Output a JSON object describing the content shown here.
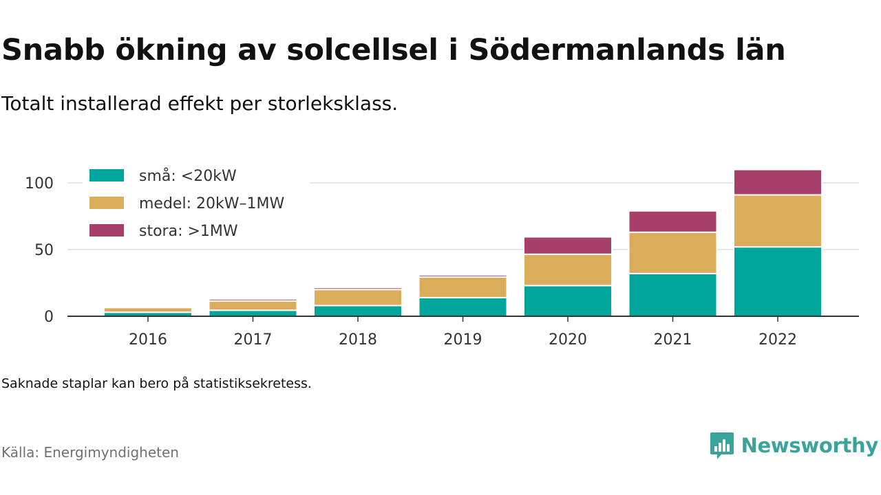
{
  "title": "Snabb ökning av solcellsel i Södermanlands län",
  "subtitle": "Totalt installerad effekt per storleksklass.",
  "note": "Saknade staplar kan bero på statistiksekretess.",
  "source": "Källa: Energimyndigheten",
  "brand": {
    "name": "Newsworthy",
    "icon": "newsworthy-logo-icon",
    "color": "#3aa49b"
  },
  "chart_data": {
    "type": "bar",
    "stacked": true,
    "categories": [
      "2016",
      "2017",
      "2018",
      "2019",
      "2020",
      "2021",
      "2022"
    ],
    "series": [
      {
        "name": "små: <20kW",
        "color": "#00a69c",
        "values": [
          3,
          4.5,
          8,
          14,
          23,
          32,
          52
        ]
      },
      {
        "name": "medel: 20kW–1MW",
        "color": "#dbac5a",
        "values": [
          3.5,
          7,
          12,
          15.5,
          23.5,
          31,
          39
        ]
      },
      {
        "name": "stora: >1MW",
        "color": "#a6406b",
        "values": [
          0,
          1.5,
          1.5,
          1.5,
          13,
          16,
          19
        ]
      }
    ],
    "yticks": [
      0,
      50,
      100
    ],
    "ylim": [
      0,
      110
    ],
    "grid": true,
    "legend_position": "top-left"
  }
}
